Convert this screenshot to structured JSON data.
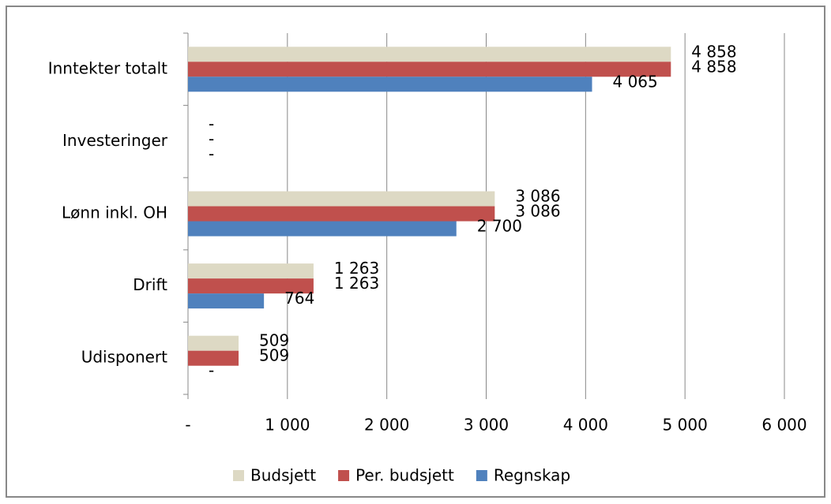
{
  "chart_data": {
    "type": "hbar",
    "categories": [
      "Inntekter totalt",
      "Investeringer",
      "Lønn inkl. OH",
      "Drift",
      "Udisponert"
    ],
    "series": [
      {
        "name": "Budsjett",
        "color": "#ddd9c4",
        "values": [
          4858,
          0,
          3086,
          1263,
          509
        ],
        "value_labels": [
          "4 858",
          "-",
          "3 086",
          "1 263",
          "509"
        ]
      },
      {
        "name": "Per. budsjett",
        "color": "#c0504d",
        "values": [
          4858,
          0,
          3086,
          1263,
          509
        ],
        "value_labels": [
          "4 858",
          "-",
          "3 086",
          "1 263",
          "509"
        ]
      },
      {
        "name": "Regnskap",
        "color": "#4f81bd",
        "values": [
          4065,
          0,
          2700,
          764,
          0
        ],
        "value_labels": [
          "4 065",
          "-",
          "2 700",
          "764",
          "-"
        ]
      }
    ],
    "xlim": [
      0,
      6000
    ],
    "xticks": [
      {
        "value": 0,
        "label": "-"
      },
      {
        "value": 1000,
        "label": "1 000"
      },
      {
        "value": 2000,
        "label": "2 000"
      },
      {
        "value": 3000,
        "label": "3 000"
      },
      {
        "value": 4000,
        "label": "4 000"
      },
      {
        "value": 5000,
        "label": "5 000"
      },
      {
        "value": 6000,
        "label": "6 000"
      }
    ],
    "grid": true,
    "legend": "bottom"
  }
}
